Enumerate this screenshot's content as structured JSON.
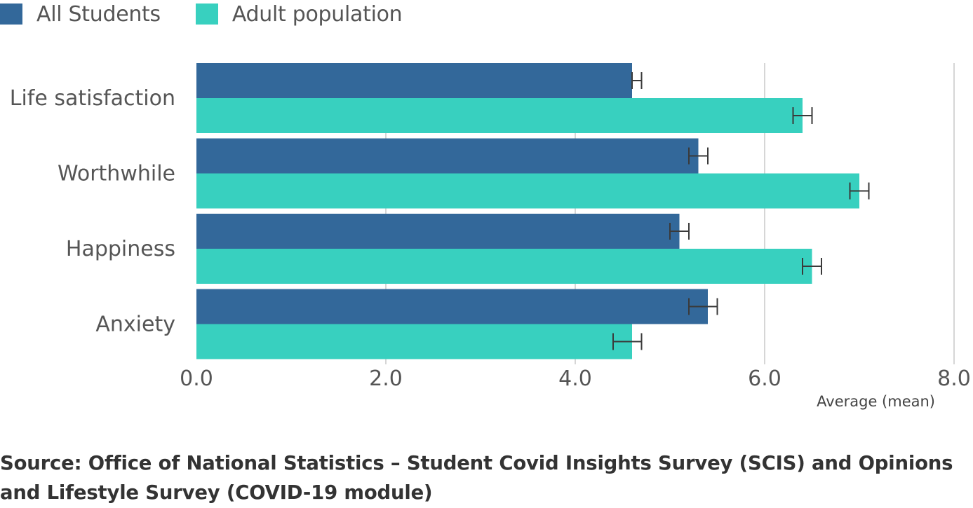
{
  "legend": {
    "items": [
      {
        "label": "All Students",
        "color": "#33689a"
      },
      {
        "label": "Adult population",
        "color": "#38d0bf"
      }
    ]
  },
  "source": "Source: Office of National Statistics – Student Covid Insights Survey (SCIS) and Opinions and Lifestyle Survey (COVID-19 module)",
  "chart_data": {
    "type": "bar",
    "orientation": "horizontal",
    "categories": [
      "Life satisfaction",
      "Worthwhile",
      "Happiness",
      "Anxiety"
    ],
    "series": [
      {
        "name": "All Students",
        "color": "#33689a",
        "values": [
          4.6,
          5.3,
          5.1,
          5.4
        ],
        "error_low": [
          4.6,
          5.2,
          5.0,
          5.2
        ],
        "error_high": [
          4.7,
          5.4,
          5.2,
          5.5
        ]
      },
      {
        "name": "Adult population",
        "color": "#38d0bf",
        "values": [
          6.4,
          7.0,
          6.5,
          4.6
        ],
        "error_low": [
          6.3,
          6.9,
          6.4,
          4.4
        ],
        "error_high": [
          6.5,
          7.1,
          6.6,
          4.7
        ]
      }
    ],
    "xlim": [
      0,
      8
    ],
    "xticks": [
      "0.0",
      "2.0",
      "4.0",
      "6.0",
      "8.0"
    ],
    "xlabel": "Average (mean)",
    "grid": true,
    "legend_position": "top-left"
  }
}
